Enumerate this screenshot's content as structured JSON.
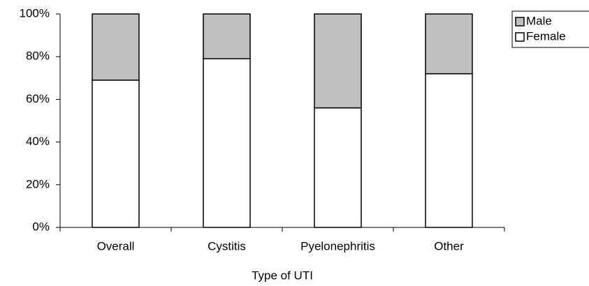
{
  "chart_data": {
    "type": "stacked_bar_100",
    "x_label": "Type of UTI",
    "categories": [
      "Overall",
      "Cystitis",
      "Pyelonephritis",
      "Other"
    ],
    "series": [
      {
        "name": "Female",
        "color": "#ffffff",
        "values": [
          69,
          79,
          56,
          72
        ]
      },
      {
        "name": "Male",
        "color": "#c0c0c0",
        "values": [
          31,
          21,
          44,
          28
        ]
      }
    ],
    "ylim": [
      0,
      100
    ],
    "yticks": [
      {
        "value": 0,
        "label": "0%"
      },
      {
        "value": 20,
        "label": "20%"
      },
      {
        "value": 40,
        "label": "40%"
      },
      {
        "value": 60,
        "label": "60%"
      },
      {
        "value": 80,
        "label": "80%"
      },
      {
        "value": 100,
        "label": "100%"
      }
    ],
    "legend": "top-right"
  }
}
